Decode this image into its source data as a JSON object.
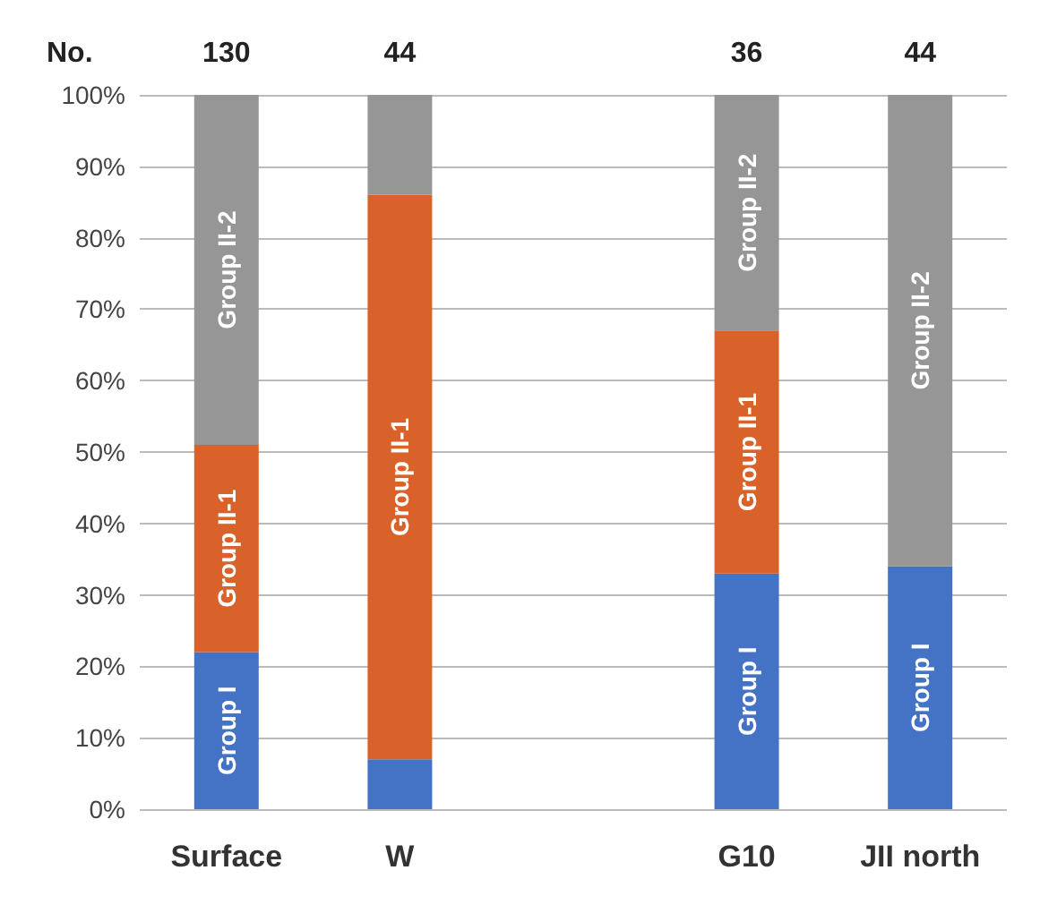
{
  "chart_data": {
    "type": "bar",
    "stacked": true,
    "categories": [
      "Surface",
      "W",
      null,
      "G10",
      "JII north"
    ],
    "series": [
      {
        "name": "Group I",
        "color": "#4472c4",
        "values": [
          22,
          7,
          null,
          33,
          34
        ]
      },
      {
        "name": "Group II-1",
        "color": "#d9622b",
        "values": [
          29,
          79,
          null,
          34,
          0
        ]
      },
      {
        "name": "Group II-2",
        "color": "#969696",
        "values": [
          49,
          14,
          null,
          33,
          66
        ]
      }
    ],
    "ylim": [
      0,
      100
    ],
    "yticks": [
      {
        "value": 0,
        "label": "0%"
      },
      {
        "value": 10,
        "label": "10%"
      },
      {
        "value": 20,
        "label": "20%"
      },
      {
        "value": 30,
        "label": "30%"
      },
      {
        "value": 40,
        "label": "40%"
      },
      {
        "value": 50,
        "label": "50%"
      },
      {
        "value": 60,
        "label": "60%"
      },
      {
        "value": 70,
        "label": "70%"
      },
      {
        "value": 80,
        "label": "80%"
      },
      {
        "value": 90,
        "label": "90%"
      },
      {
        "value": 100,
        "label": "100%"
      }
    ],
    "annotations": [
      "No.",
      "130",
      "44",
      "36",
      "44"
    ],
    "grid": true,
    "legend": false
  }
}
